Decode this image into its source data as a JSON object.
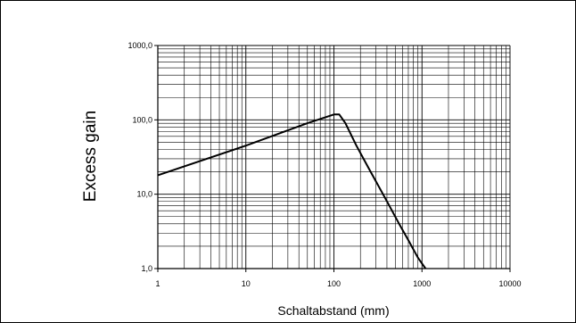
{
  "chart_data": {
    "type": "line",
    "title": "",
    "xlabel": "Schaltabstand (mm)",
    "ylabel": "Excess gain",
    "x_scale": "log",
    "y_scale": "log",
    "xlim": [
      1,
      10000
    ],
    "ylim": [
      1,
      1000
    ],
    "x_ticks": [
      {
        "value": 1,
        "label": "1"
      },
      {
        "value": 10,
        "label": "10"
      },
      {
        "value": 100,
        "label": "100"
      },
      {
        "value": 1000,
        "label": "1000"
      },
      {
        "value": 10000,
        "label": "10000"
      }
    ],
    "y_ticks": [
      {
        "value": 1,
        "label": "1,0"
      },
      {
        "value": 10,
        "label": "10,0"
      },
      {
        "value": 100,
        "label": "100,0"
      },
      {
        "value": 1000,
        "label": "1000,0"
      }
    ],
    "grid": "major and minor",
    "line_color": "#000000",
    "series": [
      {
        "values": [
          [
            1,
            18
          ],
          [
            10,
            45
          ],
          [
            50,
            90
          ],
          [
            100,
            118
          ],
          [
            115,
            118
          ],
          [
            135,
            90
          ],
          [
            180,
            45
          ],
          [
            250,
            22
          ],
          [
            400,
            8
          ],
          [
            550,
            4
          ],
          [
            700,
            2.4
          ],
          [
            900,
            1.4
          ],
          [
            1100,
            1
          ]
        ]
      }
    ]
  }
}
